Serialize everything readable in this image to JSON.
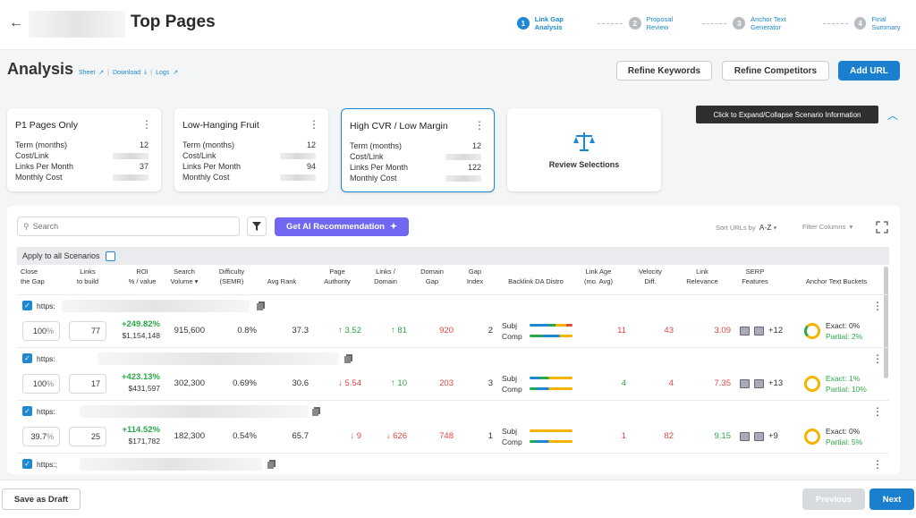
{
  "header": {
    "title": "Top Pages"
  },
  "steps": [
    {
      "num": "1",
      "label": "Link Gap Analysis",
      "active": true
    },
    {
      "num": "2",
      "label": "Proposal Review"
    },
    {
      "num": "3",
      "label": "Anchor Text Generator"
    },
    {
      "num": "4",
      "label": "Final Summary"
    }
  ],
  "analysis": {
    "title": "Analysis",
    "sheet": "Sheet",
    "download": "Download",
    "logs": "Logs",
    "sep": "|"
  },
  "actions": {
    "refine_keywords": "Refine Keywords",
    "refine_competitors": "Refine Competitors",
    "add_url": "Add URL"
  },
  "tooltip": "Click to Expand/Collapse Scenario Information",
  "card_labels": {
    "term": "Term (months)",
    "cost": "Cost/Link",
    "links": "Links Per Month",
    "monthly": "Monthly Cost"
  },
  "scenarios": [
    {
      "title": "P1 Pages Only",
      "term": "12",
      "links": "37"
    },
    {
      "title": "Low-Hanging Fruit",
      "term": "12",
      "links": "94"
    },
    {
      "title": "High CVR / Low Margin",
      "term": "12",
      "links": "122"
    }
  ],
  "review": {
    "label": "Review Selections"
  },
  "toolbar": {
    "search_placeholder": "Search",
    "ai_label": "Get AI Recommendation",
    "sort_label": "Sort URLs by",
    "sort_value": "A-Z",
    "filter_cols": "Filter Columns"
  },
  "apply_all": "Apply to all Scenarios",
  "headers": {
    "close_gap": [
      "Close",
      "the Gap"
    ],
    "links_build": [
      "Links",
      "to build"
    ],
    "roi": [
      "ROI",
      "% / value"
    ],
    "search_volume": [
      "Search",
      "Volume"
    ],
    "difficulty": [
      "Difficulty",
      "(SEMR)"
    ],
    "avg_rank": [
      "Avg Rank"
    ],
    "page_authority": [
      "Page",
      "Authority"
    ],
    "links_domain": [
      "Links /",
      "Domain"
    ],
    "domain_gap": [
      "Domain",
      "Gap"
    ],
    "gap_index": [
      "Gap",
      "Index"
    ],
    "backlink": [
      "Backlink DA Distro"
    ],
    "link_age": [
      "Link Age",
      "(mo. Avg)"
    ],
    "velocity": [
      "Velocity",
      "Diff."
    ],
    "relevance": [
      "Link",
      "Relevance"
    ],
    "serp": [
      "SERP",
      "Features"
    ],
    "anchor": [
      "Anchor Text Buckets"
    ]
  },
  "distro_labels": {
    "subj": "Subj",
    "comp": "Comp"
  },
  "rows": [
    {
      "url": "https:",
      "close": "100",
      "pct": "%",
      "links": "77",
      "roi_pct": "+249.82%",
      "roi_val": "$1,154,148",
      "volume": "915,600",
      "difficulty": "0.8%",
      "avg_rank": "37.3",
      "pa": "3.52",
      "pa_dir": "up",
      "ld": "81",
      "ld_dir": "up",
      "domain_gap": "920",
      "gap_index": "2",
      "link_age": "11",
      "velocity": "43",
      "relevance": "3.09",
      "relevance_color": "red",
      "serp_more": "+12",
      "exact": "Exact: 0%",
      "partial": "Partial: 2%",
      "anchor_color": "green-partial"
    },
    {
      "url": "https:",
      "close": "100",
      "pct": "%",
      "links": "17",
      "roi_pct": "+423.13%",
      "roi_val": "$431,597",
      "volume": "302,300",
      "difficulty": "0.69%",
      "avg_rank": "30.6",
      "pa": "5.54",
      "pa_dir": "down",
      "ld": "10",
      "ld_dir": "up",
      "domain_gap": "203",
      "gap_index": "3",
      "link_age": "4",
      "velocity": "4",
      "relevance": "7.35",
      "relevance_color": "red",
      "serp_more": "+13",
      "exact": "Exact: 1%",
      "partial": "Partial: 10%",
      "anchor_color": "green-all"
    },
    {
      "url": "https:",
      "close": "39.7",
      "pct": "%",
      "links": "25",
      "roi_pct": "+114.52%",
      "roi_val": "$171,782",
      "volume": "182,300",
      "difficulty": "0.54%",
      "avg_rank": "65.7",
      "pa": "9",
      "pa_dir": "down",
      "ld": "626",
      "ld_dir": "down",
      "domain_gap": "748",
      "gap_index": "1",
      "link_age": "1",
      "velocity": "82",
      "relevance": "9.15",
      "relevance_color": "green",
      "serp_more": "+9",
      "exact": "Exact: 0%",
      "partial": "Partial: 5%",
      "anchor_color": "green-partial"
    },
    {
      "url": "https:;"
    }
  ],
  "footer": {
    "draft": "Save as Draft",
    "previous": "Previous",
    "next": "Next"
  }
}
